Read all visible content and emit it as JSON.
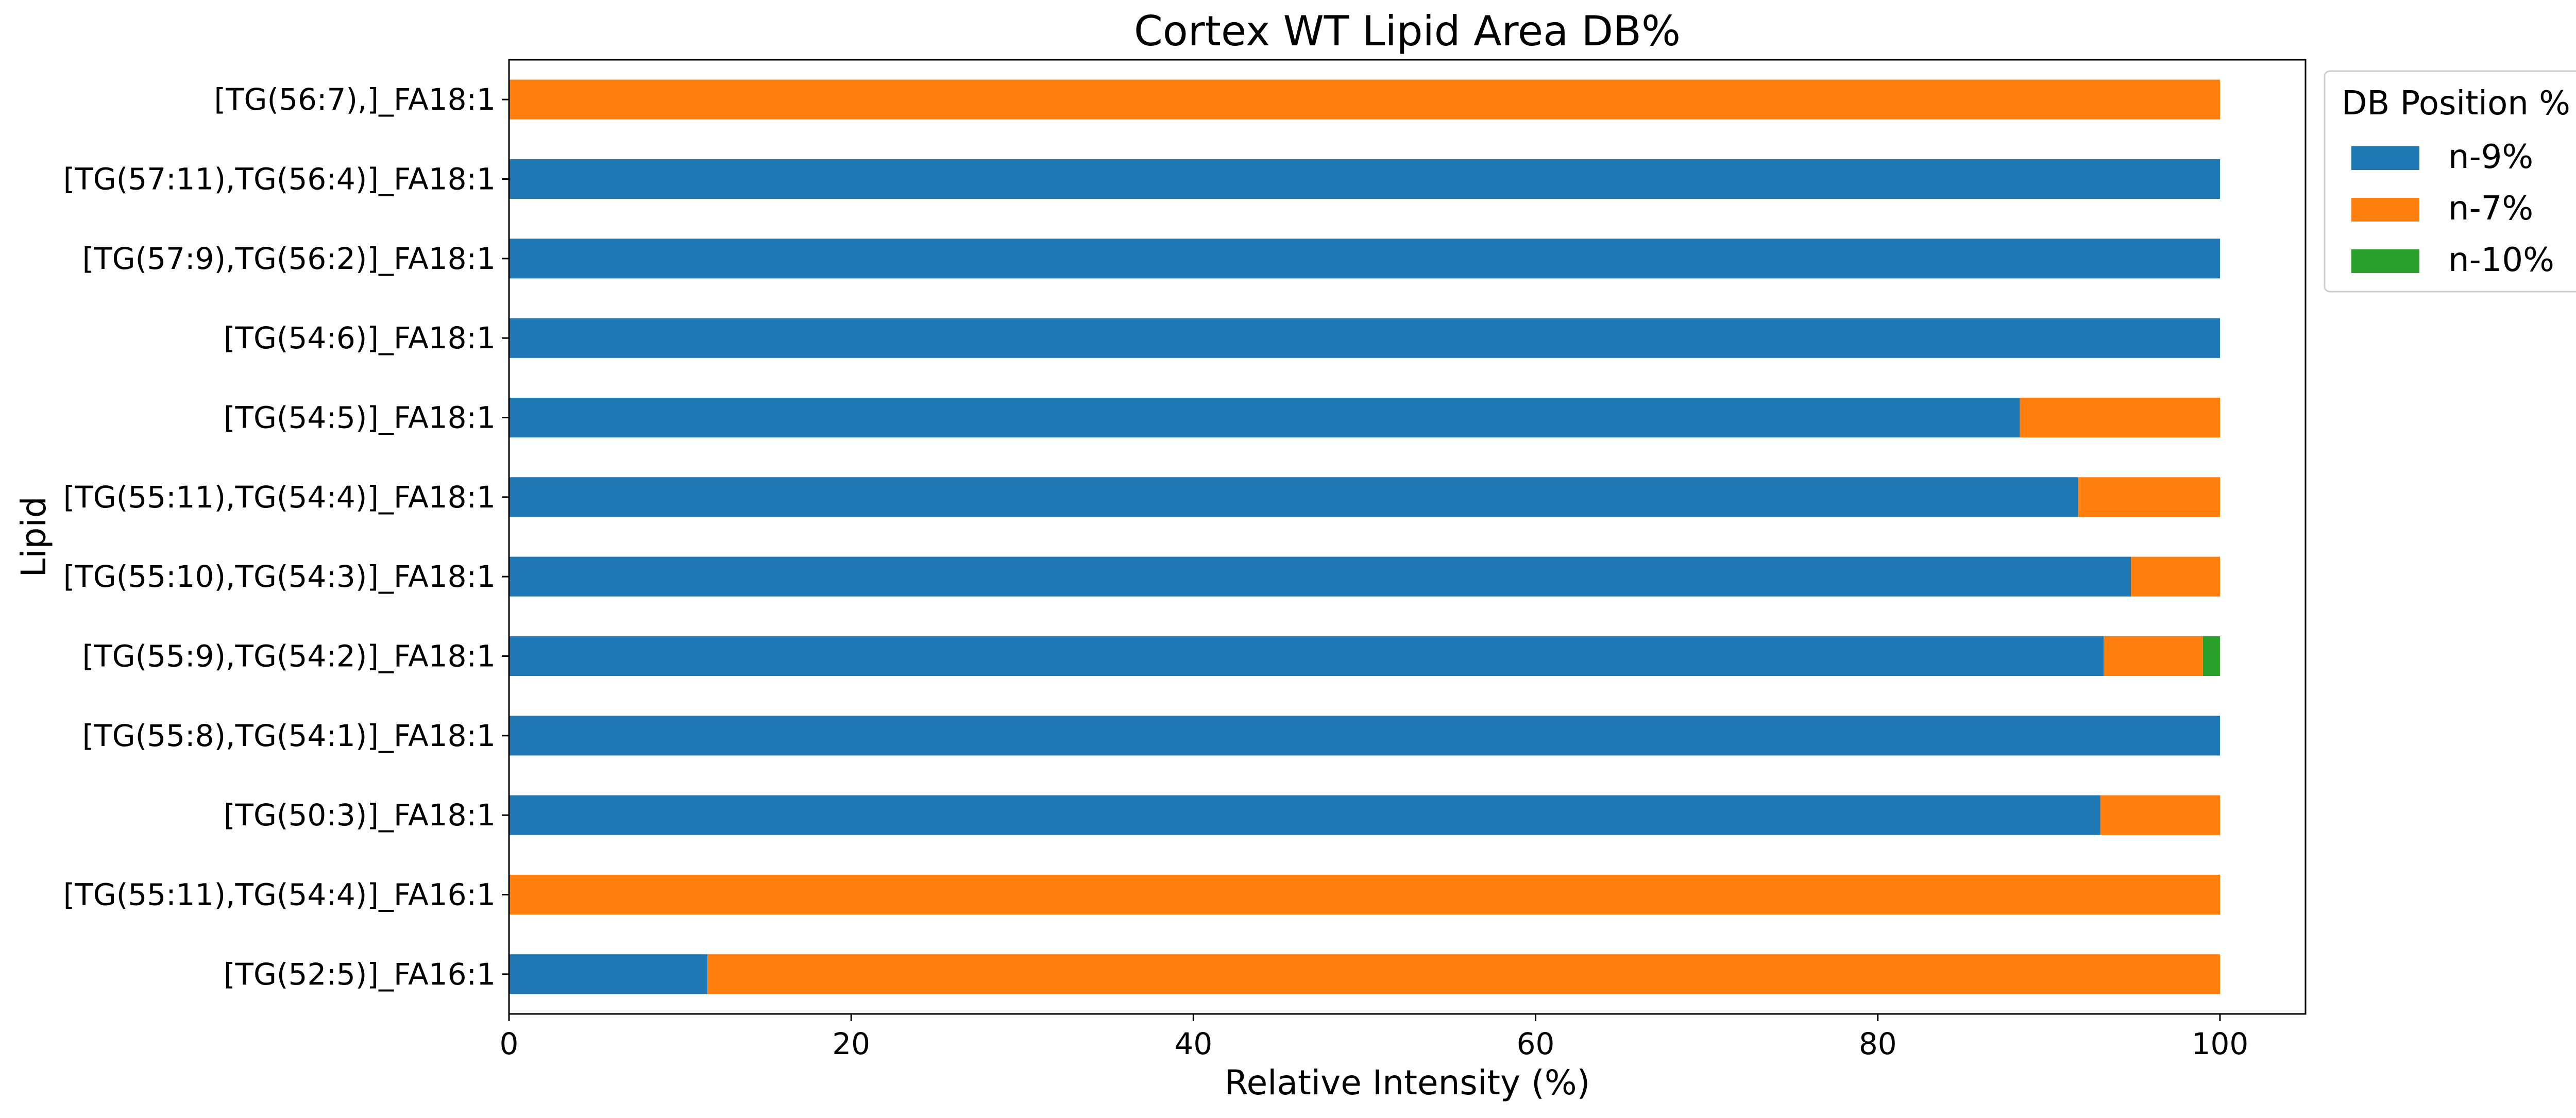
{
  "chart_data": {
    "type": "bar",
    "orientation": "horizontal",
    "stacked": true,
    "title": "Cortex WT Lipid Area DB%",
    "xlabel": "Relative Intensity (%)",
    "ylabel": "Lipid",
    "xlim": [
      0,
      105
    ],
    "xticks": [
      "0",
      "20",
      "40",
      "60",
      "80",
      "100"
    ],
    "grid": false,
    "legend": {
      "title": "DB Position %",
      "placement": "outside-top-right"
    },
    "categories": [
      "[TG(56:7),]_FA18:1",
      "[TG(57:11),TG(56:4)]_FA18:1",
      "[TG(57:9),TG(56:2)]_FA18:1",
      "[TG(54:6)]_FA18:1",
      "[TG(54:5)]_FA18:1",
      "[TG(55:11),TG(54:4)]_FA18:1",
      "[TG(55:10),TG(54:3)]_FA18:1",
      "[TG(55:9),TG(54:2)]_FA18:1",
      "[TG(55:8),TG(54:1)]_FA18:1",
      "[TG(50:3)]_FA18:1",
      "[TG(55:11),TG(54:4)]_FA16:1",
      "[TG(52:5)]_FA16:1"
    ],
    "series": [
      {
        "name": "n-9%",
        "color": "#1f77b4",
        "values": [
          0,
          100,
          100,
          100,
          88.3,
          91.7,
          94.8,
          93.2,
          100,
          93.0,
          0,
          11.6
        ]
      },
      {
        "name": "n-7%",
        "color": "#ff7f0e",
        "values": [
          100,
          0,
          0,
          0,
          11.7,
          8.3,
          5.2,
          5.8,
          0,
          7.0,
          100,
          88.4
        ]
      },
      {
        "name": "n-10%",
        "color": "#2ca02c",
        "values": [
          0,
          0,
          0,
          0,
          0,
          0,
          0,
          1.0,
          0,
          0,
          0,
          0
        ]
      }
    ]
  }
}
